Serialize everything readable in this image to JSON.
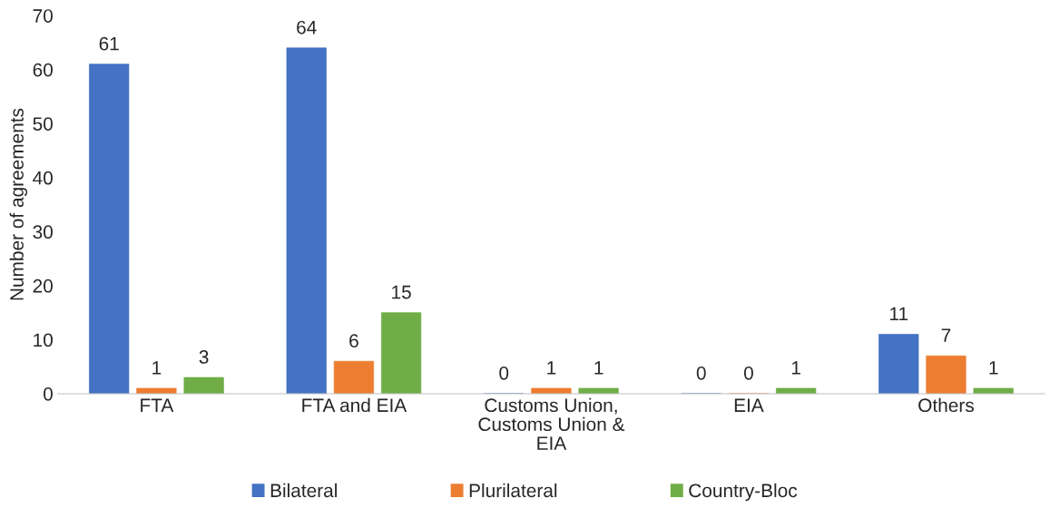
{
  "chart_data": {
    "type": "bar",
    "ylabel": "Number of agreements",
    "categories": [
      "FTA",
      "FTA and EIA",
      "Customs Union,\nCustoms Union &\nEIA",
      "EIA",
      "Others"
    ],
    "series": [
      {
        "name": "Bilateral",
        "color": "#4472c4",
        "values": [
          61,
          64,
          0,
          0,
          11
        ]
      },
      {
        "name": "Plurilateral",
        "color": "#ed7d31",
        "values": [
          1,
          6,
          1,
          0,
          7
        ]
      },
      {
        "name": "Country-Bloc",
        "color": "#70ad47",
        "values": [
          3,
          15,
          1,
          1,
          1
        ]
      }
    ],
    "ylim": [
      0,
      70
    ],
    "yticks": [
      0,
      10,
      20,
      30,
      40,
      50,
      60,
      70
    ],
    "grid": false,
    "data_labels": true,
    "legend": "bottom"
  }
}
